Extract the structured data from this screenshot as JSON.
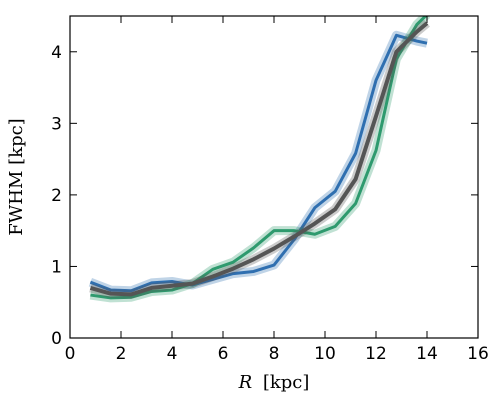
{
  "chart_data": {
    "type": "line",
    "xlabel": "R [kpc]",
    "xlabel_italic": "R",
    "xlabel_unit": "[kpc]",
    "ylabel": "FWHM [kpc]",
    "xlim": [
      0,
      16
    ],
    "ylim": [
      0,
      4.5
    ],
    "xticks": [
      0,
      2,
      4,
      6,
      8,
      10,
      12,
      14,
      16
    ],
    "yticks": [
      0,
      1,
      2,
      3,
      4
    ],
    "grid": false,
    "legend": false,
    "x": [
      0.8,
      1.6,
      2.4,
      3.2,
      4.0,
      4.8,
      5.6,
      6.4,
      7.2,
      8.0,
      8.8,
      9.6,
      10.4,
      11.2,
      12.0,
      12.8,
      13.6
    ],
    "series": [
      {
        "color": "#2f6fb0",
        "x": [
          0.8,
          1.6,
          2.4,
          3.2,
          4.0,
          4.8,
          5.6,
          6.4,
          7.2,
          8.0,
          8.8,
          9.6,
          10.4,
          11.2,
          12.0,
          12.8,
          13.6,
          14.0
        ],
        "values": [
          0.78,
          0.67,
          0.66,
          0.77,
          0.79,
          0.74,
          0.82,
          0.9,
          0.93,
          1.02,
          1.38,
          1.82,
          2.05,
          2.58,
          3.6,
          4.23,
          4.15,
          4.12
        ]
      },
      {
        "color": "#2e9a6e",
        "x": [
          0.8,
          1.6,
          2.4,
          3.2,
          4.0,
          4.8,
          5.6,
          6.4,
          7.2,
          8.0,
          8.8,
          9.6,
          10.4,
          11.2,
          12.0,
          12.8,
          13.6,
          14.0
        ],
        "values": [
          0.6,
          0.56,
          0.57,
          0.65,
          0.67,
          0.76,
          0.96,
          1.06,
          1.26,
          1.5,
          1.5,
          1.45,
          1.56,
          1.88,
          2.62,
          3.9,
          4.38,
          4.52
        ]
      },
      {
        "color": "#555555",
        "x": [
          0.8,
          1.6,
          2.4,
          3.2,
          4.0,
          4.8,
          5.6,
          6.4,
          7.2,
          8.0,
          8.8,
          9.6,
          10.4,
          11.2,
          12.0,
          12.8,
          13.6,
          14.0
        ],
        "values": [
          0.7,
          0.62,
          0.61,
          0.7,
          0.73,
          0.76,
          0.86,
          0.97,
          1.1,
          1.25,
          1.42,
          1.6,
          1.8,
          2.22,
          3.1,
          4.0,
          4.28,
          4.4
        ]
      }
    ]
  }
}
